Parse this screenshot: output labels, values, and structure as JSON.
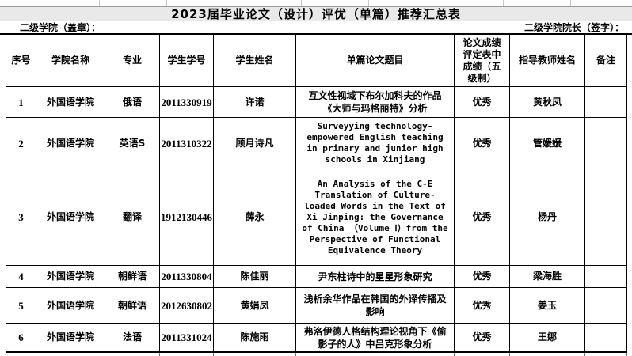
{
  "document": {
    "title": "2023届毕业论文（设计）评优（单篇）推荐汇总表",
    "stamp_label": "二级学院（盖章）：",
    "dean_sign_label": "二级学院院长（签字）："
  },
  "table": {
    "columns": [
      {
        "key": "no",
        "label": "序号"
      },
      {
        "key": "college",
        "label": "学院名称"
      },
      {
        "key": "major",
        "label": "专业"
      },
      {
        "key": "student_id",
        "label": "学生学号"
      },
      {
        "key": "student_name",
        "label": "学生姓名"
      },
      {
        "key": "thesis_title",
        "label": "单篇论文题目"
      },
      {
        "key": "grade",
        "label": "论文成绩评定表中成绩（五级制）"
      },
      {
        "key": "advisor",
        "label": "指导教师姓名"
      },
      {
        "key": "remark",
        "label": "备注"
      }
    ],
    "rows": [
      {
        "no": "1",
        "college": "外国语学院",
        "major": "俄语",
        "student_id": "2011330919",
        "student_name": "许诺",
        "thesis_title": "互文性视域下布尔加科夫的作品《大师与玛格丽特》分析",
        "grade": "优秀",
        "advisor": "黄秋凤",
        "remark": ""
      },
      {
        "no": "2",
        "college": "外国语学院",
        "major": "英语S",
        "student_id": "2011310322",
        "student_name": "顾月诗凡",
        "thesis_title": "Surveyying technology-empowered English teaching in primary and junior high schools in Xinjiang",
        "grade": "优秀",
        "advisor": "管媛媛",
        "remark": ""
      },
      {
        "no": "3",
        "college": "外国语学院",
        "major": "翻译",
        "student_id": "1912130446",
        "student_name": "薛永",
        "thesis_title": "An Analysis of the C-E Translation of Culture-loaded Words in the Text of Xi Jinping: the Governance of China （Volume Ⅰ）from the Perspective of Functional Equivalence Theory",
        "grade": "优秀",
        "advisor": "杨丹",
        "remark": ""
      },
      {
        "no": "4",
        "college": "外国语学院",
        "major": "朝鲜语",
        "student_id": "2011330804",
        "student_name": "陈佳丽",
        "thesis_title": "尹东柱诗中的星星形象研究",
        "grade": "优秀",
        "advisor": "梁海胜",
        "remark": ""
      },
      {
        "no": "5",
        "college": "外国语学院",
        "major": "朝鲜语",
        "student_id": "2012630802",
        "student_name": "黄娟凤",
        "thesis_title": "浅析余华作品在韩国的外译传播及影响",
        "grade": "优秀",
        "advisor": "姜玉",
        "remark": ""
      },
      {
        "no": "6",
        "college": "外国语学院",
        "major": "法语",
        "student_id": "2011331024",
        "student_name": "陈施雨",
        "thesis_title": "弗洛伊德人格结构理论视角下《偷影子的人》中吕克形象分析",
        "grade": "优秀",
        "advisor": "王娜",
        "remark": ""
      }
    ]
  },
  "colors": {
    "page_bg": "#ffffff",
    "title_band_bg": "#e9e9e9",
    "table_border": "#000000",
    "gridline": "#c9c9c9",
    "text": "#000000"
  }
}
